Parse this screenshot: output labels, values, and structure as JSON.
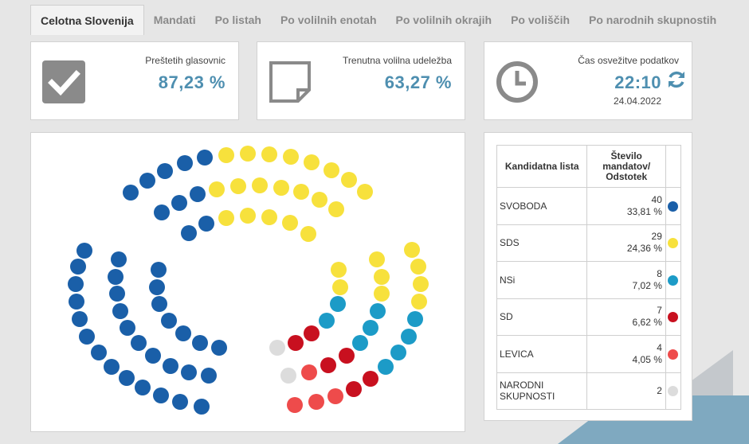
{
  "tabs": [
    {
      "label": "Celotna Slovenija",
      "active": true
    },
    {
      "label": "Mandati"
    },
    {
      "label": "Po listah"
    },
    {
      "label": "Po volilnih enotah"
    },
    {
      "label": "Po volilnih okrajih"
    },
    {
      "label": "Po voliščih"
    },
    {
      "label": "Po narodnih skupnostih"
    }
  ],
  "cards": {
    "counted": {
      "label": "Preštetih glasovnic",
      "value": "87,23 %",
      "icon": "checkmark-icon"
    },
    "turnout": {
      "label": "Trenutna volilna udeležba",
      "value": "63,27 %",
      "icon": "note-icon"
    },
    "refresh": {
      "label": "Čas osvežitve podatkov",
      "time": "22:10",
      "date": "24.04.2022",
      "icon": "clock-icon"
    }
  },
  "table": {
    "header_list": "Kandidatna lista",
    "header_seats_line1": "Število",
    "header_seats_line2": "mandatov/",
    "header_seats_line3": "Odstotek",
    "rows": [
      {
        "name": "SVOBODA",
        "seats": "40",
        "pct": "33,81 %",
        "color": "#1a5fa8"
      },
      {
        "name": "SDS",
        "seats": "29",
        "pct": "24,36 %",
        "color": "#f7e13c"
      },
      {
        "name": "NSi",
        "seats": "8",
        "pct": "7,02 %",
        "color": "#1c9bc7"
      },
      {
        "name": "SD",
        "seats": "7",
        "pct": "6,62 %",
        "color": "#c8101f"
      },
      {
        "name": "LEVICA",
        "seats": "4",
        "pct": "4,05 %",
        "color": "#ee4b4b"
      },
      {
        "name": "NARODNI SKUPNOSTI",
        "seats": "2",
        "pct": "",
        "color": "#dcdcdc"
      }
    ]
  }
}
